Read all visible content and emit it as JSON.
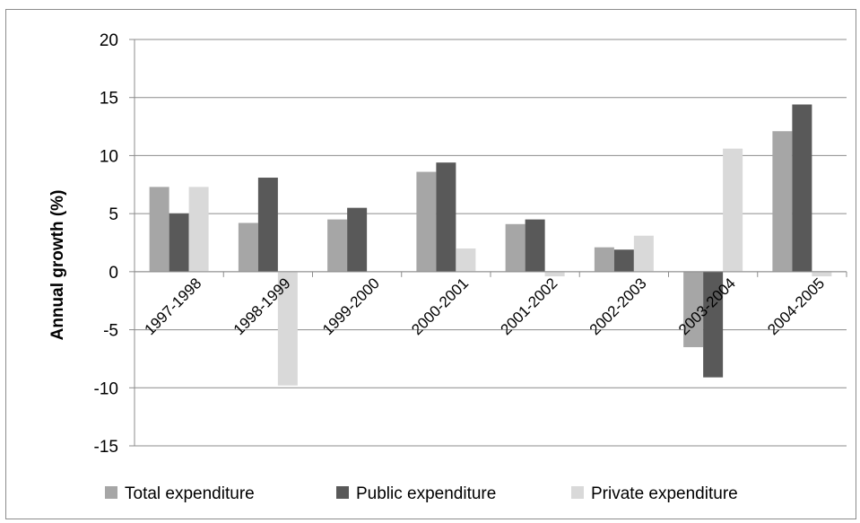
{
  "chart_data": {
    "type": "bar",
    "title": "",
    "xlabel": "",
    "ylabel": "Annual growth (%)",
    "ylim": [
      -15,
      20
    ],
    "yticks": [
      20,
      15,
      10,
      5,
      0,
      -5,
      -10,
      -15
    ],
    "grid": true,
    "legend_position": "bottom",
    "categories": [
      "1997-1998",
      "1998-1999",
      "1999-2000",
      "2000-2001",
      "2001-2002",
      "2002-2003",
      "2003-2004",
      "2004-2005"
    ],
    "series": [
      {
        "name": "Total expenditure",
        "color": "#a6a6a6",
        "values": [
          7.3,
          4.2,
          4.5,
          8.6,
          4.1,
          2.1,
          -6.5,
          12.1
        ]
      },
      {
        "name": "Public expenditure",
        "color": "#595959",
        "values": [
          5.0,
          8.1,
          5.5,
          9.4,
          4.5,
          1.9,
          -9.1,
          14.4
        ]
      },
      {
        "name": "Private expenditure",
        "color": "#d9d9d9",
        "values": [
          7.3,
          -9.8,
          0,
          2.0,
          -0.4,
          3.1,
          10.6,
          -0.4
        ]
      }
    ]
  }
}
